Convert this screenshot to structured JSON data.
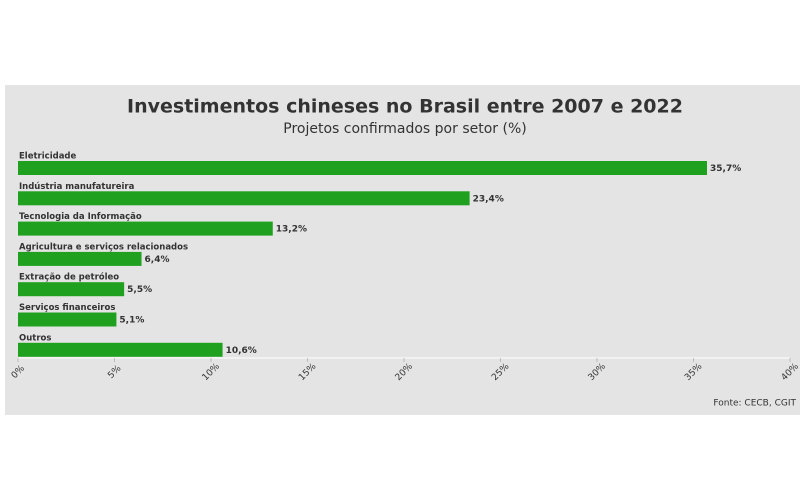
{
  "chart_data": {
    "type": "bar",
    "orientation": "horizontal",
    "title": "Investimentos chineses no Brasil entre 2007 e 2022",
    "subtitle": "Projetos confirmados por setor (%)",
    "categories": [
      "Eletricidade",
      "Indústria manufatureira",
      "Tecnologia da Informação",
      "Agricultura e serviços relacionados",
      "Extração de petróleo",
      "Serviços financeiros",
      "Outros"
    ],
    "values": [
      35.7,
      23.4,
      13.2,
      6.4,
      5.5,
      5.1,
      10.6
    ],
    "value_labels": [
      "35,7%",
      "23,4%",
      "13,2%",
      "6,4%",
      "5,5%",
      "5,1%",
      "10,6%"
    ],
    "color": "#1fa01f",
    "xlim": [
      0,
      40
    ],
    "xticks": [
      {
        "value": 0,
        "label": "0%"
      },
      {
        "value": 5,
        "label": "5%"
      },
      {
        "value": 10,
        "label": "10%"
      },
      {
        "value": 15,
        "label": "15%"
      },
      {
        "value": 20,
        "label": "20%"
      },
      {
        "value": 25,
        "label": "25%"
      },
      {
        "value": 30,
        "label": "30%"
      },
      {
        "value": 35,
        "label": "35%"
      },
      {
        "value": 40,
        "label": "40%"
      }
    ],
    "source": "Fonte: CECB, CGIT"
  }
}
